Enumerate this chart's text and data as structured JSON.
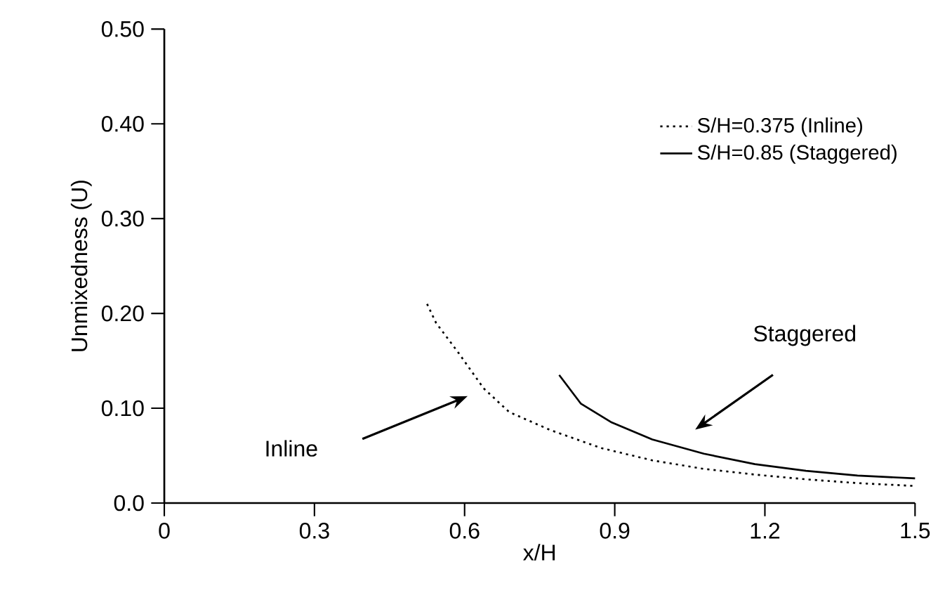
{
  "chart_data": {
    "type": "line",
    "xlabel": "x/H",
    "ylabel": "Unmixedness (U)",
    "xlim": [
      0,
      1.5
    ],
    "ylim": [
      0,
      0.5
    ],
    "xticks": [
      0,
      0.3,
      0.6,
      0.9,
      1.2,
      1.5
    ],
    "yticks": [
      {
        "value": 0,
        "label": "0.0"
      },
      {
        "value": 0.1,
        "label": "0.10"
      },
      {
        "value": 0.2,
        "label": "0.20"
      },
      {
        "value": 0.3,
        "label": "0.30"
      },
      {
        "value": 0.4,
        "label": "0.40"
      },
      {
        "value": 0.5,
        "label": "0.50"
      }
    ],
    "grid": false,
    "legend": "top right",
    "marker": "none",
    "series": [
      {
        "name": "S/H=0.375 (Inline)",
        "color": "#000000",
        "line_style": "dotted",
        "x": [
          0.525,
          0.543,
          0.587,
          0.638,
          0.689,
          0.771,
          0.873,
          0.975,
          1.078,
          1.18,
          1.282,
          1.385,
          1.5
        ],
        "values": [
          0.21,
          0.19,
          0.159,
          0.121,
          0.096,
          0.077,
          0.058,
          0.045,
          0.036,
          0.03,
          0.025,
          0.021,
          0.018
        ]
      },
      {
        "name": "S/H=0.85 (Staggered)",
        "color": "#000000",
        "line_style": "solid",
        "x": [
          0.789,
          0.832,
          0.894,
          0.975,
          1.078,
          1.18,
          1.282,
          1.385,
          1.5
        ],
        "values": [
          0.135,
          0.105,
          0.085,
          0.067,
          0.052,
          0.041,
          0.034,
          0.029,
          0.026
        ]
      }
    ],
    "annotations": [
      "Inline",
      "Staggered"
    ]
  }
}
